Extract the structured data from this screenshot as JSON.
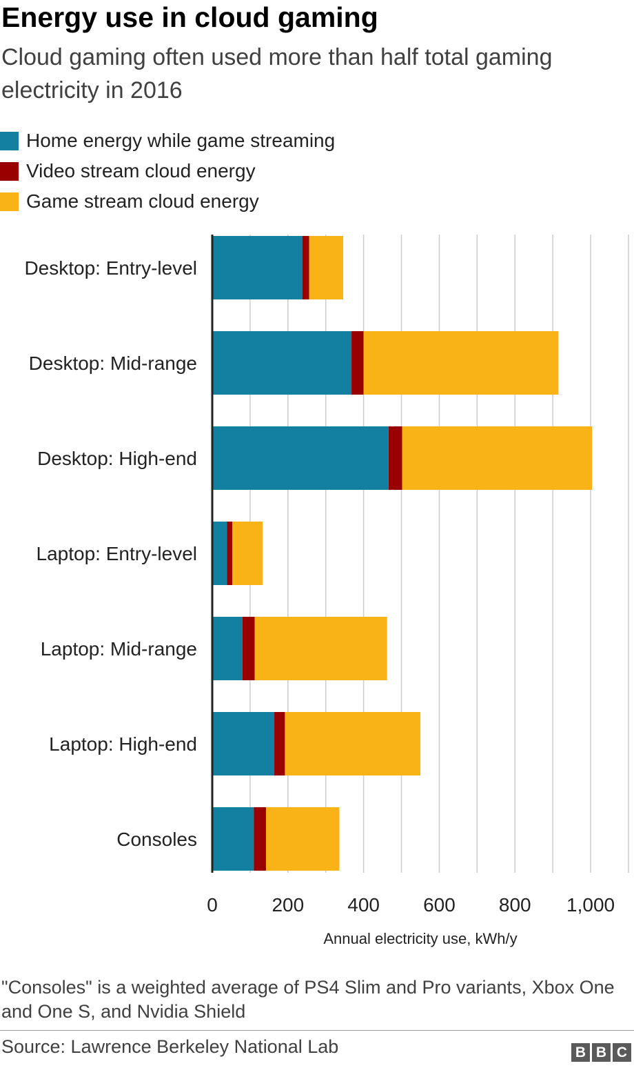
{
  "header": {
    "title": "Energy use in cloud gaming",
    "subtitle": "Cloud gaming often used more than half total gaming electricity in 2016"
  },
  "legend": [
    {
      "label": "Home energy while game streaming",
      "color": "#1380a1"
    },
    {
      "label": "Video stream cloud energy",
      "color": "#990000"
    },
    {
      "label": "Game stream cloud energy",
      "color": "#fab317"
    }
  ],
  "chart_data": {
    "type": "bar",
    "orientation": "horizontal",
    "stacked": true,
    "categories": [
      "Desktop: Entry-level",
      "Desktop: Mid-range",
      "Desktop: High-end",
      "Laptop: Entry-level",
      "Laptop: Mid-range",
      "Laptop: High-end",
      "Consoles"
    ],
    "series": [
      {
        "name": "Home energy while game streaming",
        "color": "#1380a1",
        "values": [
          238,
          368,
          466,
          39,
          80,
          164,
          110
        ]
      },
      {
        "name": "Video stream cloud energy",
        "color": "#990000",
        "values": [
          18,
          32,
          36,
          14,
          32,
          28,
          32
        ]
      },
      {
        "name": "Game stream cloud energy",
        "color": "#fab317",
        "values": [
          90,
          515,
          502,
          80,
          350,
          358,
          194
        ]
      }
    ],
    "xlabel": "Annual electricity use, kWh/y",
    "ylabel": "",
    "xlim": [
      0,
      1100
    ],
    "xticks": [
      0,
      200,
      400,
      600,
      800,
      1000
    ],
    "xtick_labels": [
      "0",
      "200",
      "400",
      "600",
      "800",
      "1,000"
    ],
    "grid": true,
    "legend_position": "top-left"
  },
  "footnote": "\"Consoles\" is a weighted average of PS4 Slim and Pro variants, Xbox One and One S, and Nvidia Shield",
  "source": "Source: Lawrence Berkeley National Lab",
  "logo": {
    "letters": [
      "B",
      "B",
      "C"
    ]
  }
}
